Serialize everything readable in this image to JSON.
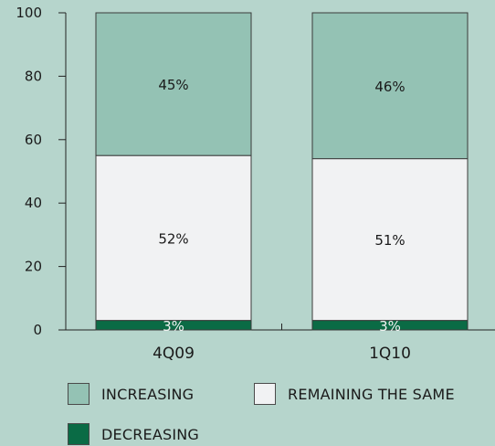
{
  "chart_data": {
    "type": "bar",
    "stacked": true,
    "categories": [
      "4Q09",
      "1Q10"
    ],
    "series": [
      {
        "name": "DECREASING",
        "values": [
          3,
          3
        ],
        "labels": [
          "3%",
          "3%"
        ],
        "color": "#0a6b45"
      },
      {
        "name": "REMAINING THE SAME",
        "values": [
          52,
          51
        ],
        "labels": [
          "52%",
          "51%"
        ],
        "color": "#f1f2f3"
      },
      {
        "name": "INCREASING",
        "values": [
          45,
          46
        ],
        "labels": [
          "45%",
          "46%"
        ],
        "color": "#94c2b4"
      }
    ],
    "ylim": [
      0,
      100
    ],
    "yticks": [
      "0",
      "20",
      "40",
      "60",
      "80",
      "100"
    ],
    "legend_position": "bottom"
  },
  "colors": {
    "background": "#b6d5cc",
    "axis": "#222222",
    "bar_border": "#3a3a3a"
  },
  "legend": {
    "increasing": "INCREASING",
    "remaining": "REMAINING THE SAME",
    "decreasing": "DECREASING"
  }
}
